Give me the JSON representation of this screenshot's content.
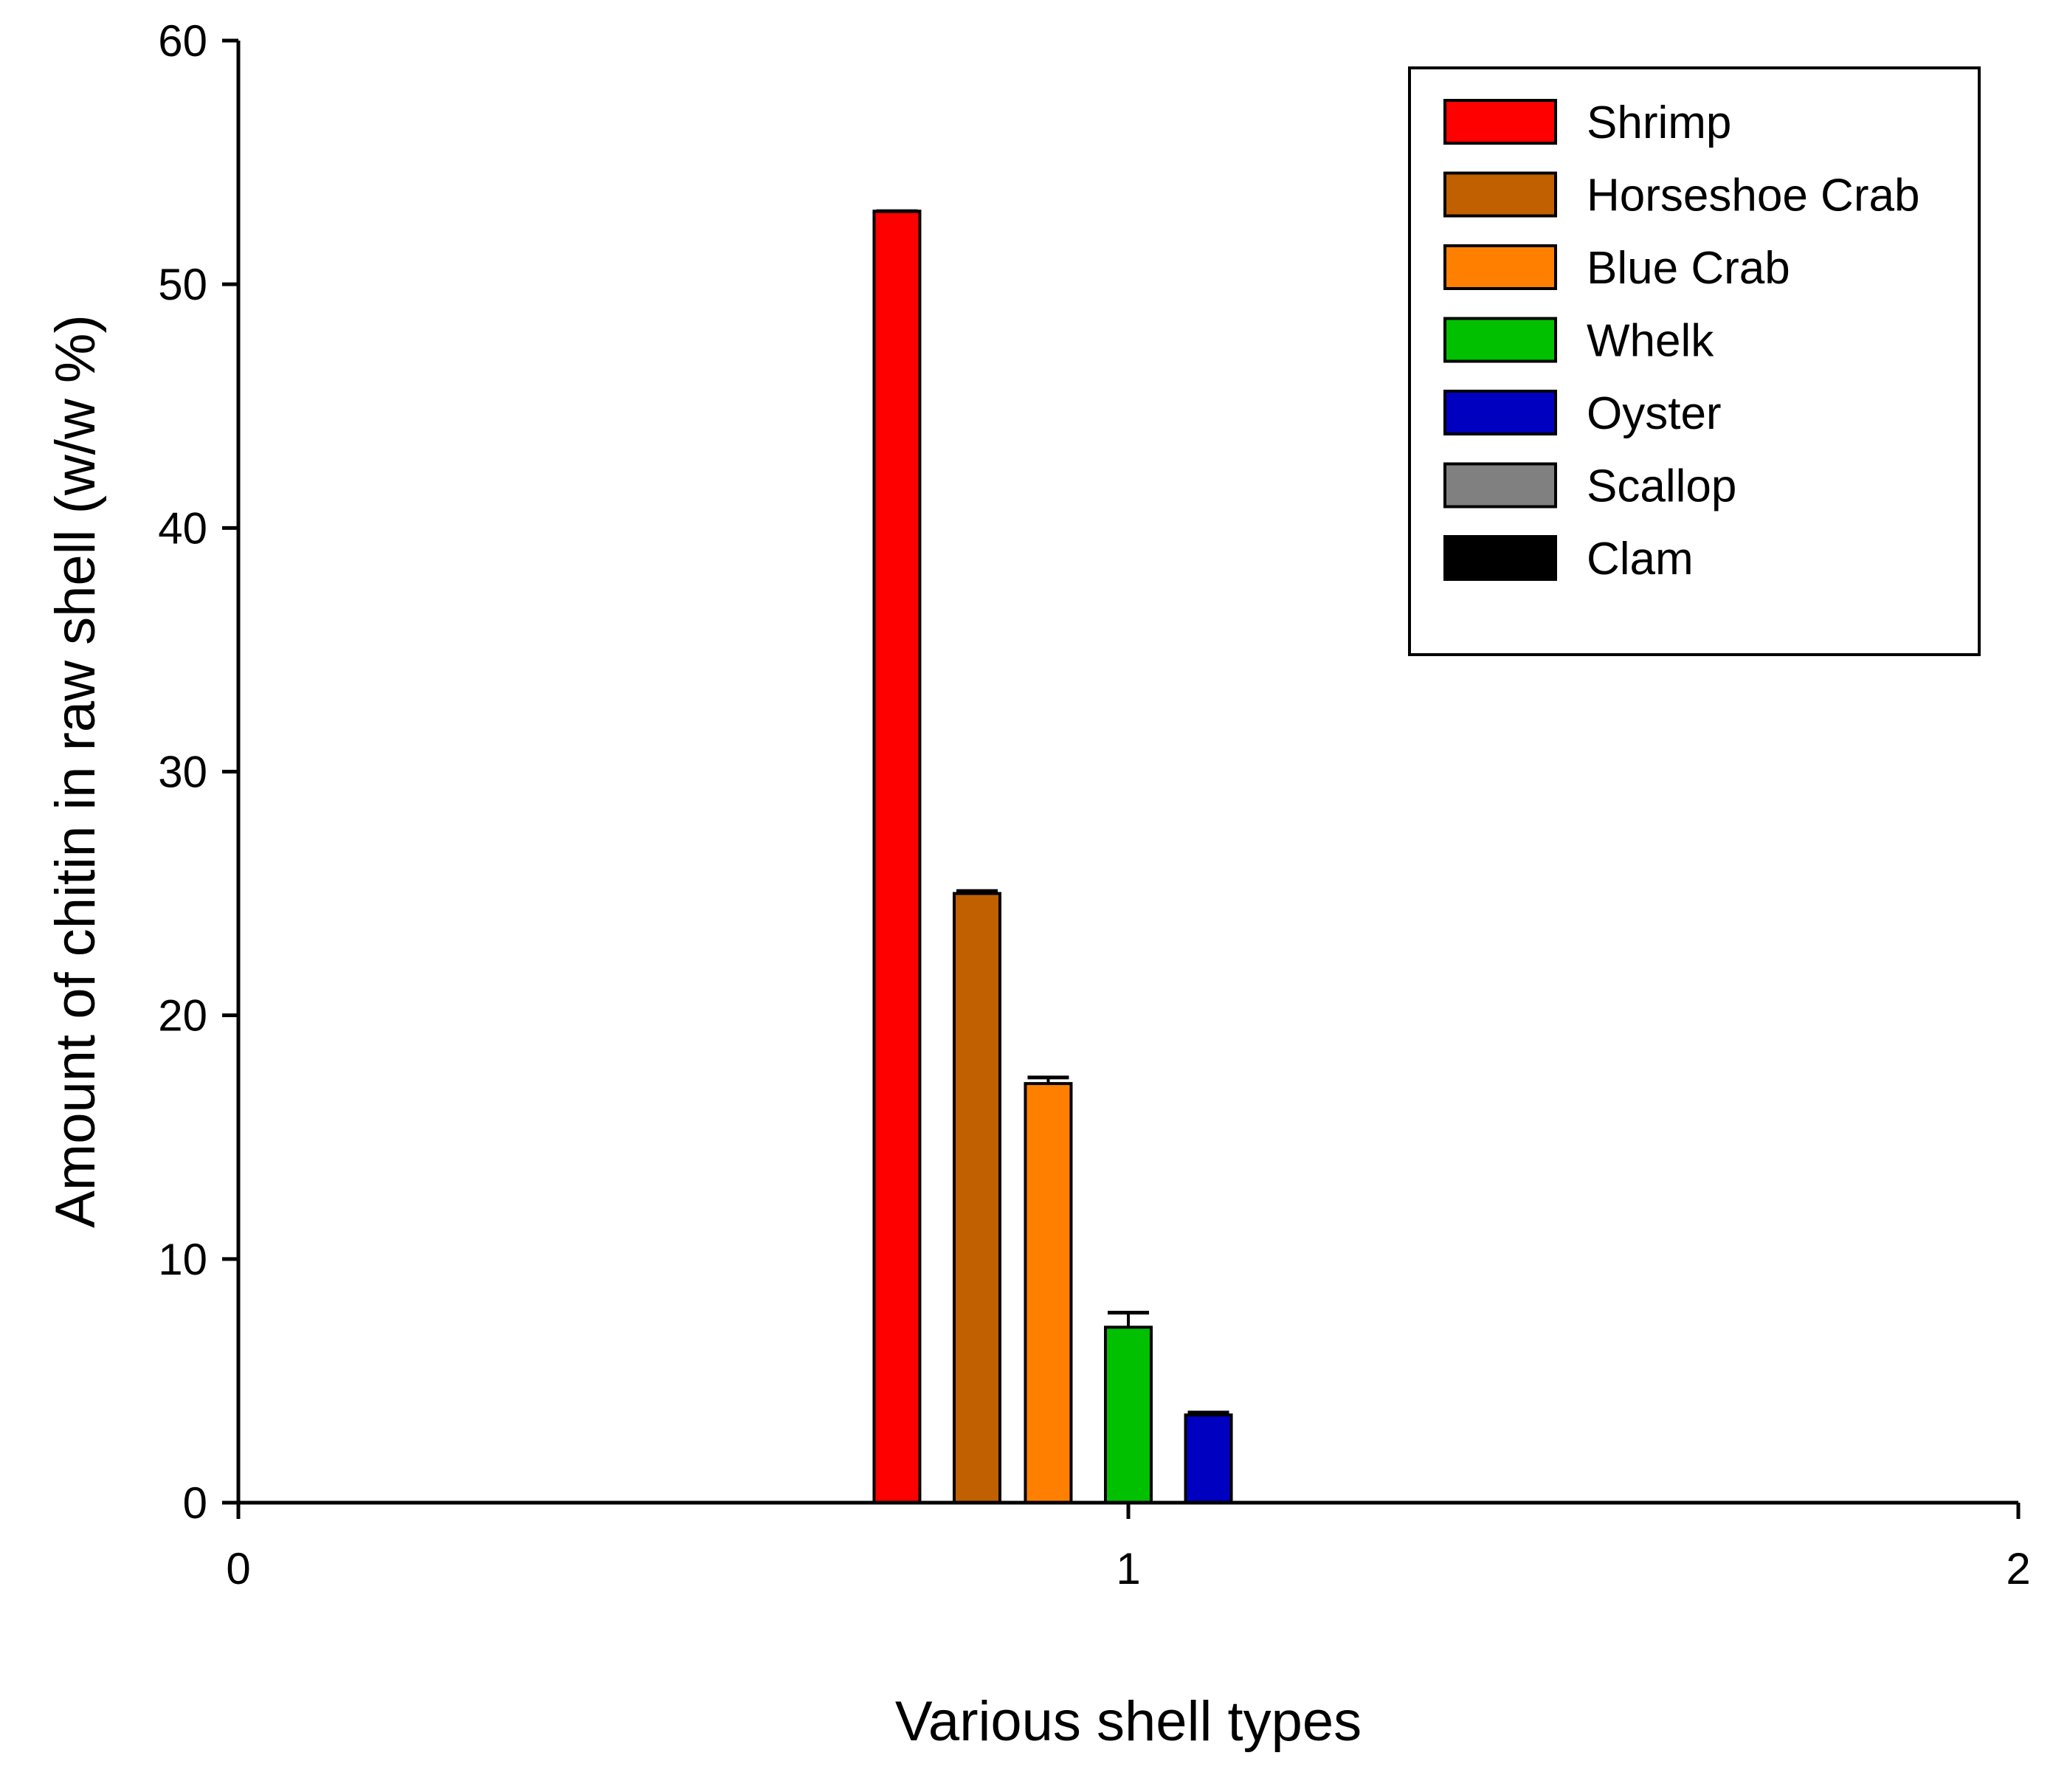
{
  "chart_data": {
    "type": "bar",
    "xlabel": "Various shell types",
    "ylabel": "Amount of chitin in raw shell (w/w %)",
    "xlim": [
      0,
      2
    ],
    "ylim": [
      0,
      60
    ],
    "x_ticks": [
      "0",
      "1",
      "2"
    ],
    "y_ticks": [
      "0",
      "10",
      "20",
      "30",
      "40",
      "50",
      "60"
    ],
    "grid": false,
    "legend_position": "top-right",
    "series": [
      {
        "name": "Shrimp",
        "x": 0.74,
        "value": 53.0,
        "error": 0.0,
        "color": "#FF0000"
      },
      {
        "name": "Horseshoe Crab",
        "x": 0.83,
        "value": 25.0,
        "error": 0.1,
        "color": "#C06000"
      },
      {
        "name": "Blue Crab",
        "x": 0.91,
        "value": 17.2,
        "error": 0.25,
        "color": "#FF8000"
      },
      {
        "name": "Whelk",
        "x": 1.0,
        "value": 7.2,
        "error": 0.6,
        "color": "#00C000"
      },
      {
        "name": "Oyster",
        "x": 1.09,
        "value": 3.6,
        "error": 0.1,
        "color": "#0000C0"
      },
      {
        "name": "Scallop",
        "x": 1.17,
        "value": 0,
        "error": 0,
        "color": "#808080"
      },
      {
        "name": "Clam",
        "x": 1.26,
        "value": 0,
        "error": 0,
        "color": "#000000"
      }
    ]
  }
}
